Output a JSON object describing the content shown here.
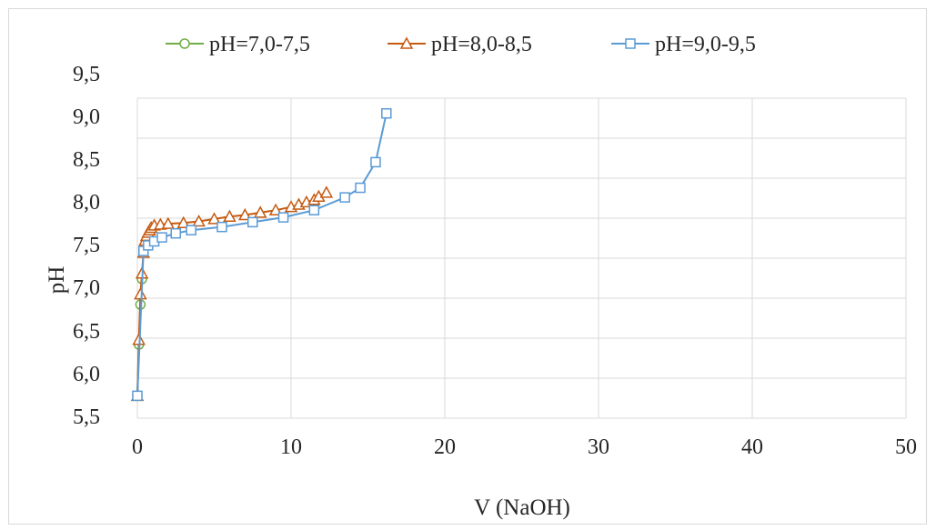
{
  "chart_data": {
    "type": "scatter",
    "xlabel": "V (NaOH)",
    "ylabel": "pH",
    "xlim": [
      0,
      50
    ],
    "ylim": [
      5.5,
      9.5
    ],
    "x_ticks": [
      "0",
      "10",
      "20",
      "30",
      "40",
      "50"
    ],
    "y_ticks": [
      "5,5",
      "6,0",
      "6,5",
      "7,0",
      "7,5",
      "8,0",
      "8,5",
      "9,0",
      "9,5"
    ],
    "grid": true,
    "legend_position": "top",
    "series": [
      {
        "name": "pH=7,0-7,5",
        "color": "#70ad47",
        "marker": "circle",
        "points": [
          [
            0.0,
            5.78
          ],
          [
            0.1,
            6.42
          ],
          [
            0.2,
            6.92
          ],
          [
            0.3,
            7.24
          ]
        ]
      },
      {
        "name": "pH=8,0-8,5",
        "color": "#c55a11",
        "marker": "triangle",
        "points": [
          [
            0.0,
            5.78
          ],
          [
            0.1,
            6.48
          ],
          [
            0.2,
            7.05
          ],
          [
            0.3,
            7.31
          ],
          [
            0.4,
            7.57
          ],
          [
            0.5,
            7.72
          ],
          [
            0.6,
            7.78
          ],
          [
            0.7,
            7.82
          ],
          [
            0.8,
            7.85
          ],
          [
            0.9,
            7.88
          ],
          [
            1.1,
            7.91
          ],
          [
            1.5,
            7.92
          ],
          [
            2.0,
            7.93
          ],
          [
            3.0,
            7.94
          ],
          [
            4.0,
            7.96
          ],
          [
            5.0,
            7.99
          ],
          [
            6.0,
            8.02
          ],
          [
            7.0,
            8.04
          ],
          [
            8.0,
            8.07
          ],
          [
            9.0,
            8.1
          ],
          [
            10.0,
            8.14
          ],
          [
            10.5,
            8.17
          ],
          [
            11.0,
            8.2
          ],
          [
            11.5,
            8.23
          ],
          [
            11.8,
            8.27
          ],
          [
            12.3,
            8.32
          ]
        ]
      },
      {
        "name": "pH=9,0-9,5",
        "color": "#5b9bd5",
        "marker": "square",
        "points": [
          [
            0.0,
            5.78
          ],
          [
            0.4,
            7.59
          ],
          [
            0.7,
            7.66
          ],
          [
            1.1,
            7.71
          ],
          [
            1.6,
            7.76
          ],
          [
            2.5,
            7.81
          ],
          [
            3.5,
            7.85
          ],
          [
            5.5,
            7.89
          ],
          [
            7.5,
            7.95
          ],
          [
            9.5,
            8.01
          ],
          [
            11.5,
            8.1
          ],
          [
            13.5,
            8.26
          ],
          [
            14.5,
            8.38
          ],
          [
            15.5,
            8.7
          ],
          [
            16.2,
            9.31
          ]
        ]
      }
    ]
  }
}
